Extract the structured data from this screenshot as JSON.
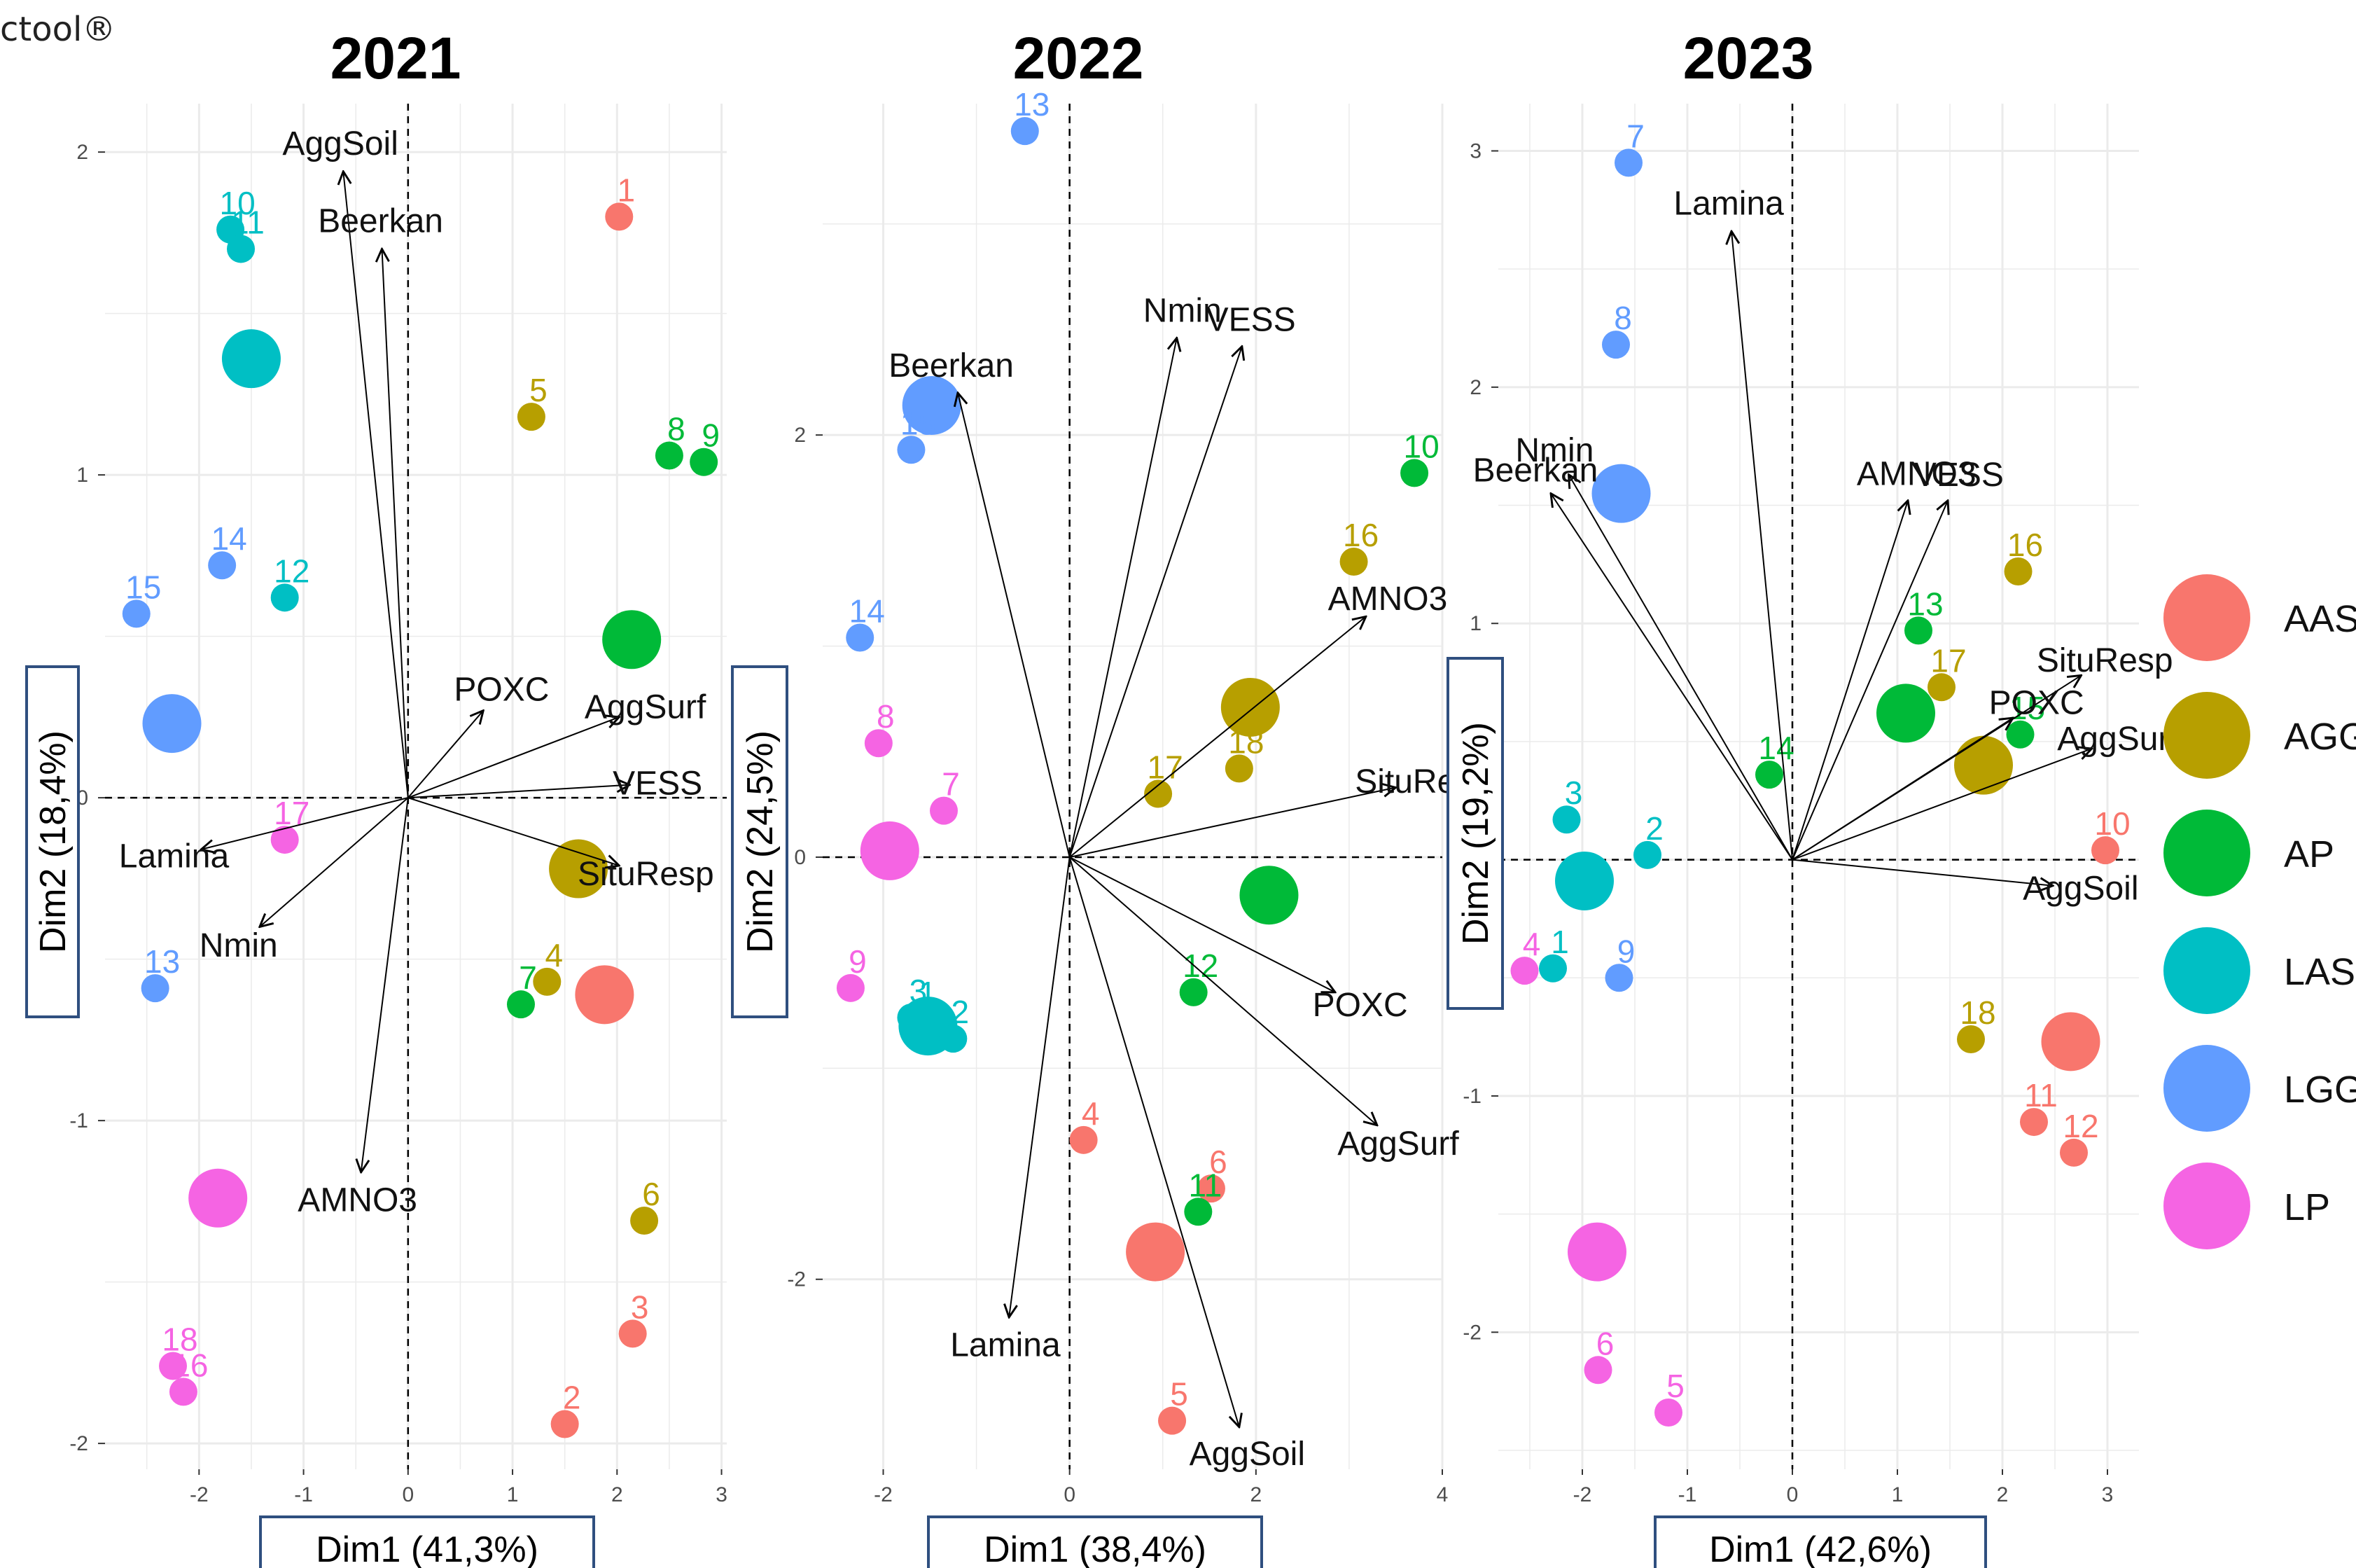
{
  "watermark": "ctool®",
  "colors": {
    "AAS": "#F8766D",
    "AGG": "#B79F00",
    "AP": "#00BA38",
    "LAS": "#00BFC4",
    "LGG": "#619CFF",
    "LP": "#F564E3"
  },
  "legend": {
    "entries": [
      "AAS",
      "AGG",
      "AP",
      "LAS",
      "LGG",
      "LP"
    ]
  },
  "chart_data": [
    {
      "type": "scatter",
      "title": "2021",
      "xlabel": "Dim1 (41,3%)",
      "ylabel": "Dim2 (18,4%)",
      "xlim": [
        -2.9,
        3.05
      ],
      "ylim": [
        -2.08,
        2.15
      ],
      "xticks": [
        -2,
        -1,
        0,
        1,
        2,
        3
      ],
      "yticks": [
        -2,
        -1,
        0,
        1,
        2
      ],
      "grid": true,
      "points": [
        {
          "label": "1",
          "group": "AAS",
          "x": 2.02,
          "y": 1.8
        },
        {
          "label": "2",
          "group": "AAS",
          "x": 1.5,
          "y": -1.94
        },
        {
          "label": "3",
          "group": "AAS",
          "x": 2.15,
          "y": -1.66
        },
        {
          "label": "4",
          "group": "AGG",
          "x": 1.33,
          "y": -0.57
        },
        {
          "label": "5",
          "group": "AGG",
          "x": 1.18,
          "y": 1.18
        },
        {
          "label": "6",
          "group": "AGG",
          "x": 2.26,
          "y": -1.31
        },
        {
          "label": "7",
          "group": "AP",
          "x": 1.08,
          "y": -0.64
        },
        {
          "label": "8",
          "group": "AP",
          "x": 2.5,
          "y": 1.06
        },
        {
          "label": "9",
          "group": "AP",
          "x": 2.83,
          "y": 1.04
        },
        {
          "label": "10",
          "group": "LAS",
          "x": -1.7,
          "y": 1.76
        },
        {
          "label": "11",
          "group": "LAS",
          "x": -1.6,
          "y": 1.7
        },
        {
          "label": "12",
          "group": "LAS",
          "x": -1.18,
          "y": 0.62
        },
        {
          "label": "13",
          "group": "LGG",
          "x": -2.42,
          "y": -0.59
        },
        {
          "label": "14",
          "group": "LGG",
          "x": -1.78,
          "y": 0.72
        },
        {
          "label": "15",
          "group": "LGG",
          "x": -2.6,
          "y": 0.57
        },
        {
          "label": "16",
          "group": "LP",
          "x": -2.15,
          "y": -1.84
        },
        {
          "label": "17",
          "group": "LP",
          "x": -1.18,
          "y": -0.13
        },
        {
          "label": "18",
          "group": "LP",
          "x": -2.25,
          "y": -1.76
        }
      ],
      "centroids": [
        {
          "group": "AAS",
          "x": 1.88,
          "y": -0.61
        },
        {
          "group": "AGG",
          "x": 1.63,
          "y": -0.22
        },
        {
          "group": "AP",
          "x": 2.14,
          "y": 0.49
        },
        {
          "group": "LAS",
          "x": -1.5,
          "y": 1.36
        },
        {
          "group": "LGG",
          "x": -2.26,
          "y": 0.23
        },
        {
          "group": "LP",
          "x": -1.82,
          "y": -1.24
        }
      ],
      "arrows": [
        {
          "label": "AggSoil",
          "x": -0.62,
          "y": 1.94
        },
        {
          "label": "Beerkan",
          "x": -0.25,
          "y": 1.7
        },
        {
          "label": "POXC",
          "x": 0.72,
          "y": 0.27
        },
        {
          "label": "AggSurf",
          "x": 2.02,
          "y": 0.25
        },
        {
          "label": "VESS",
          "x": 2.12,
          "y": 0.04
        },
        {
          "label": "SituResp",
          "x": 2.02,
          "y": -0.21
        },
        {
          "label": "Lamina",
          "x": -1.98,
          "y": -0.16
        },
        {
          "label": "Nmin",
          "x": -1.42,
          "y": -0.4
        },
        {
          "label": "AMNO3",
          "x": -0.45,
          "y": -1.16
        }
      ]
    },
    {
      "type": "scatter",
      "title": "2022",
      "xlabel": "Dim1 (38,4%)",
      "ylabel": "Dim2 (24,5%)",
      "xlim": [
        -2.65,
        4.0
      ],
      "ylim": [
        -2.9,
        3.57
      ],
      "xticks": [
        -2,
        0,
        2,
        4
      ],
      "yticks": [
        -2,
        0,
        2
      ],
      "grid": true,
      "points": [
        {
          "label": "1",
          "group": "LAS",
          "x": -1.6,
          "y": -0.77
        },
        {
          "label": "2",
          "group": "LAS",
          "x": -1.25,
          "y": -0.86
        },
        {
          "label": "3",
          "group": "LAS",
          "x": -1.7,
          "y": -0.76
        },
        {
          "label": "4",
          "group": "AAS",
          "x": 0.15,
          "y": -1.34
        },
        {
          "label": "5",
          "group": "AAS",
          "x": 1.1,
          "y": -2.67
        },
        {
          "label": "6",
          "group": "AAS",
          "x": 1.52,
          "y": -1.57
        },
        {
          "label": "7",
          "group": "LP",
          "x": -1.35,
          "y": 0.22
        },
        {
          "label": "8",
          "group": "LP",
          "x": -2.05,
          "y": 0.54
        },
        {
          "label": "9",
          "group": "LP",
          "x": -2.35,
          "y": -0.62
        },
        {
          "label": "10",
          "group": "AP",
          "x": 3.7,
          "y": 1.82
        },
        {
          "label": "11",
          "group": "AP",
          "x": 1.38,
          "y": -1.68
        },
        {
          "label": "12",
          "group": "AP",
          "x": 1.33,
          "y": -0.64
        },
        {
          "label": "13",
          "group": "LGG",
          "x": -0.48,
          "y": 3.44
        },
        {
          "label": "14",
          "group": "LGG",
          "x": -2.25,
          "y": 1.04
        },
        {
          "label": "15",
          "group": "LGG",
          "x": -1.7,
          "y": 1.93
        },
        {
          "label": "16",
          "group": "AGG",
          "x": 3.05,
          "y": 1.4
        },
        {
          "label": "17",
          "group": "AGG",
          "x": 0.95,
          "y": 0.3
        },
        {
          "label": "18",
          "group": "AGG",
          "x": 1.82,
          "y": 0.42
        }
      ],
      "centroids": [
        {
          "group": "AAS",
          "x": 0.92,
          "y": -1.87
        },
        {
          "group": "AGG",
          "x": 1.94,
          "y": 0.71
        },
        {
          "group": "AP",
          "x": 2.14,
          "y": -0.18
        },
        {
          "group": "LAS",
          "x": -1.52,
          "y": -0.8
        },
        {
          "group": "LGG",
          "x": -1.48,
          "y": 2.14
        },
        {
          "group": "LP",
          "x": -1.93,
          "y": 0.03
        }
      ],
      "arrows": [
        {
          "label": "Beerkan",
          "x": -1.2,
          "y": 2.2
        },
        {
          "label": "Nmin",
          "x": 1.15,
          "y": 2.46
        },
        {
          "label": "VESS",
          "x": 1.85,
          "y": 2.42
        },
        {
          "label": "AMNO3",
          "x": 3.18,
          "y": 1.14
        },
        {
          "label": "SituResp",
          "x": 3.5,
          "y": 0.33
        },
        {
          "label": "POXC",
          "x": 2.85,
          "y": -0.64
        },
        {
          "label": "AggSurf",
          "x": 3.3,
          "y": -1.27
        },
        {
          "label": "Lamina",
          "x": -0.65,
          "y": -2.18
        },
        {
          "label": "AggSoil",
          "x": 1.82,
          "y": -2.7
        }
      ]
    },
    {
      "type": "scatter",
      "title": "2023",
      "xlabel": "Dim1 (42,6%)",
      "ylabel": "Dim2 (19,2%)",
      "xlim": [
        -2.8,
        3.3
      ],
      "ylim": [
        -2.58,
        3.2
      ],
      "xticks": [
        -2,
        -1,
        0,
        1,
        2,
        3
      ],
      "yticks": [
        -2,
        -1,
        0,
        1,
        2,
        3
      ],
      "grid": true,
      "points": [
        {
          "label": "1",
          "group": "LAS",
          "x": -2.28,
          "y": -0.46
        },
        {
          "label": "2",
          "group": "LAS",
          "x": -1.38,
          "y": 0.02
        },
        {
          "label": "3",
          "group": "LAS",
          "x": -2.15,
          "y": 0.17
        },
        {
          "label": "4",
          "group": "LP",
          "x": -2.55,
          "y": -0.47
        },
        {
          "label": "5",
          "group": "LP",
          "x": -1.18,
          "y": -2.34
        },
        {
          "label": "6",
          "group": "LP",
          "x": -1.85,
          "y": -2.16
        },
        {
          "label": "7",
          "group": "LGG",
          "x": -1.56,
          "y": 2.95
        },
        {
          "label": "8",
          "group": "LGG",
          "x": -1.68,
          "y": 2.18
        },
        {
          "label": "9",
          "group": "LGG",
          "x": -1.65,
          "y": -0.5
        },
        {
          "label": "10",
          "group": "AAS",
          "x": 2.98,
          "y": 0.04
        },
        {
          "label": "11",
          "group": "AAS",
          "x": 2.3,
          "y": -1.11
        },
        {
          "label": "12",
          "group": "AAS",
          "x": 2.68,
          "y": -1.24
        },
        {
          "label": "13",
          "group": "AP",
          "x": 1.2,
          "y": 0.97
        },
        {
          "label": "14",
          "group": "AP",
          "x": -0.22,
          "y": 0.36
        },
        {
          "label": "15",
          "group": "AP",
          "x": 2.17,
          "y": 0.53
        },
        {
          "label": "16",
          "group": "AGG",
          "x": 2.15,
          "y": 1.22
        },
        {
          "label": "17",
          "group": "AGG",
          "x": 1.42,
          "y": 0.73
        },
        {
          "label": "18",
          "group": "AGG",
          "x": 1.7,
          "y": -0.76
        }
      ],
      "centroids": [
        {
          "group": "AAS",
          "x": 2.65,
          "y": -0.77
        },
        {
          "group": "AGG",
          "x": 1.82,
          "y": 0.4
        },
        {
          "group": "AP",
          "x": 1.08,
          "y": 0.62
        },
        {
          "group": "LAS",
          "x": -1.98,
          "y": -0.09
        },
        {
          "group": "LGG",
          "x": -1.63,
          "y": 1.55
        },
        {
          "group": "LP",
          "x": -1.86,
          "y": -1.66
        }
      ],
      "arrows": [
        {
          "label": "Lamina",
          "x": -0.58,
          "y": 2.66
        },
        {
          "label": "Nmin",
          "x": -2.13,
          "y": 1.63
        },
        {
          "label": "Beerkan",
          "x": -2.3,
          "y": 1.55
        },
        {
          "label": "AMNO3",
          "x": 1.1,
          "y": 1.52
        },
        {
          "label": "VESS",
          "x": 1.48,
          "y": 1.52
        },
        {
          "label": "SituResp",
          "x": 2.75,
          "y": 0.78
        },
        {
          "label": "POXC",
          "x": 2.1,
          "y": 0.6
        },
        {
          "label": "AggSurf",
          "x": 2.85,
          "y": 0.47
        },
        {
          "label": "AggSoil",
          "x": 2.48,
          "y": -0.11
        }
      ]
    }
  ]
}
